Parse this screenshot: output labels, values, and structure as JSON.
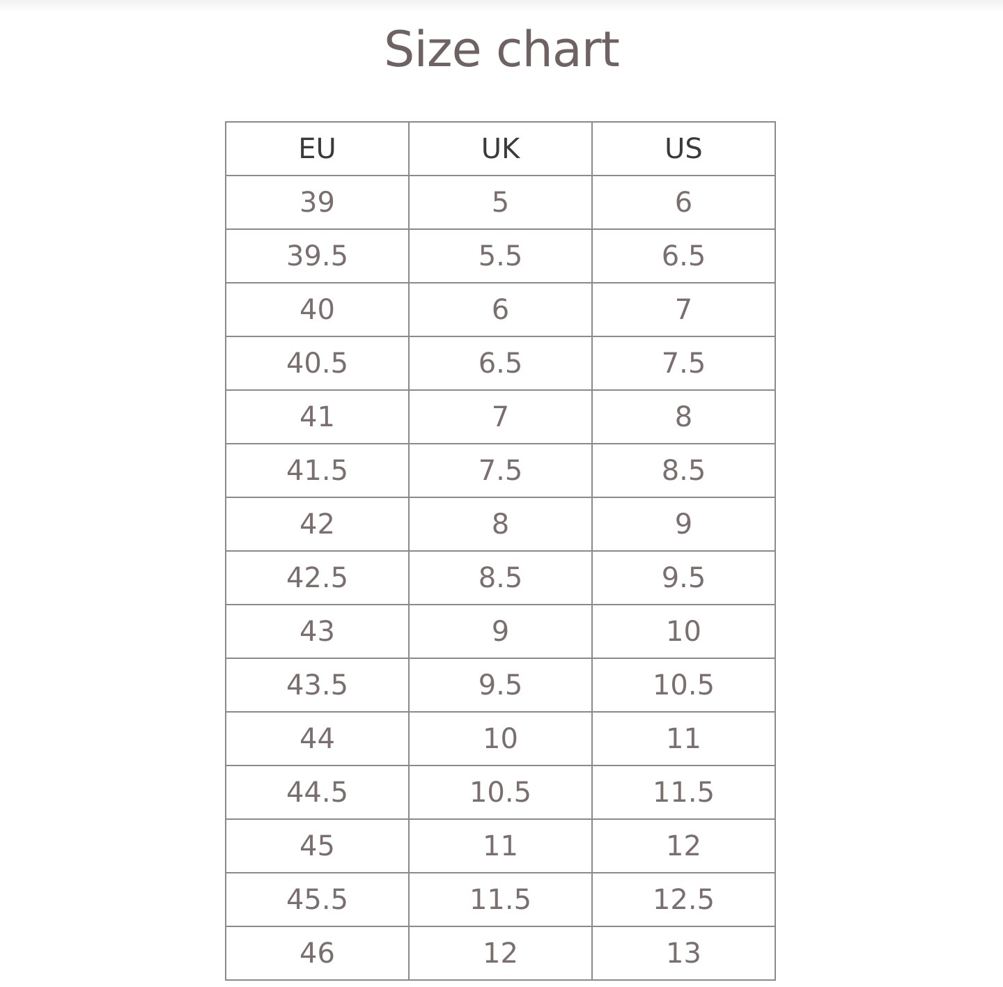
{
  "title": "Size chart",
  "colors": {
    "title": "#6e6262",
    "header_text": "#3a3a3a",
    "cell_text": "#7a6e6e",
    "border": "#8a8a8a"
  },
  "table": {
    "headers": [
      "EU",
      "UK",
      "US"
    ],
    "rows": [
      [
        "39",
        "5",
        "6"
      ],
      [
        "39.5",
        "5.5",
        "6.5"
      ],
      [
        "40",
        "6",
        "7"
      ],
      [
        "40.5",
        "6.5",
        "7.5"
      ],
      [
        "41",
        "7",
        "8"
      ],
      [
        "41.5",
        "7.5",
        "8.5"
      ],
      [
        "42",
        "8",
        "9"
      ],
      [
        "42.5",
        "8.5",
        "9.5"
      ],
      [
        "43",
        "9",
        "10"
      ],
      [
        "43.5",
        "9.5",
        "10.5"
      ],
      [
        "44",
        "10",
        "11"
      ],
      [
        "44.5",
        "10.5",
        "11.5"
      ],
      [
        "45",
        "11",
        "12"
      ],
      [
        "45.5",
        "11.5",
        "12.5"
      ],
      [
        "46",
        "12",
        "13"
      ]
    ]
  }
}
